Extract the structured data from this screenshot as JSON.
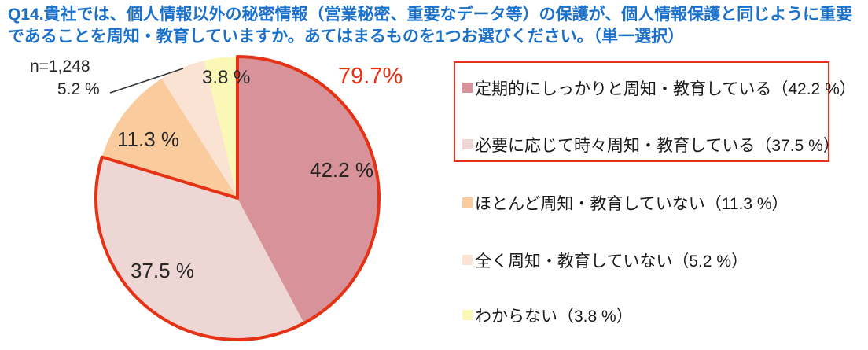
{
  "colors": {
    "title_blue": "#1b70c9",
    "accent_red": "#e63214",
    "label_dark": "#262626"
  },
  "chart_data": {
    "type": "pie",
    "title": "Q14.貴社では、個人情報以外の秘密情報（営業秘密、重要なデータ等）の保護が、個人情報保護と同じように重要であることを周知・教育していますか。あてはまるものを1つお選びください。（単一選択）",
    "n_label": "n=1,248",
    "categories": [
      "定期的にしっかりと周知・教育している",
      "必要に応じて時々周知・教育している",
      "ほとんど周知・教育していない",
      "全く周知・教育していない",
      "わからない"
    ],
    "values": [
      42.2,
      37.5,
      11.3,
      5.2,
      3.8
    ],
    "slice_colors": [
      "#d79399",
      "#eed6d5",
      "#f9cb9d",
      "#fae3d2",
      "#fbf7b6"
    ],
    "slice_labels": [
      "42.2 %",
      "37.5 %",
      "11.3 %",
      "5.2 %",
      "3.8 %"
    ],
    "start_angle_deg": 0,
    "direction": "clockwise",
    "legend_position": "right",
    "highlight": {
      "label": "79.7%",
      "slice_indexes": [
        0,
        1
      ],
      "outline_color": "#e63214"
    },
    "legend": {
      "items": [
        {
          "label": "定期的にしっかりと周知・教育している（42.2 %）",
          "color": "#d79399",
          "highlighted": true
        },
        {
          "label": "必要に応じて時々周知・教育している（37.5 %）",
          "color": "#eed6d5",
          "highlighted": true
        },
        {
          "label": "ほとんど周知・教育していない（11.3 %）",
          "color": "#f9cb9d",
          "highlighted": false
        },
        {
          "label": "全く周知・教育していない（5.2 %）",
          "color": "#fae3d2",
          "highlighted": false
        },
        {
          "label": "わからない（3.8 %）",
          "color": "#fbf7b6",
          "highlighted": false
        }
      ]
    }
  }
}
